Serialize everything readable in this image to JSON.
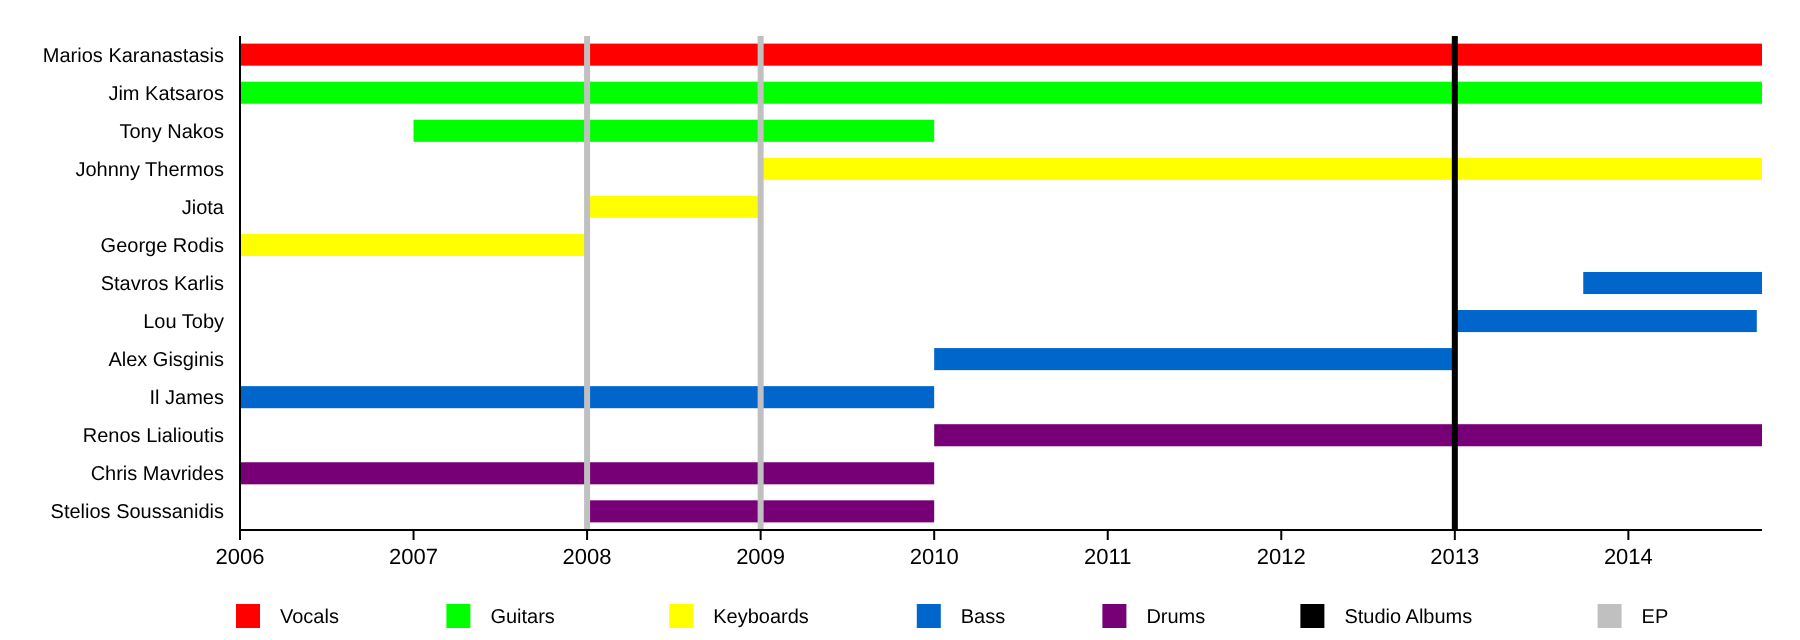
{
  "chart_data": {
    "type": "bar",
    "orientation": "horizontal",
    "categories": [
      "Marios Karanastasis",
      "Jim Katsaros",
      "Tony Nakos",
      "Johnny Thermos",
      "Jiota",
      "George Rodis",
      "Stavros Karlis",
      "Lou Toby",
      "Alex Gisginis",
      "Il James",
      "Renos Lialioutis",
      "Chris Mavrides",
      "Stelios Soussanidis"
    ],
    "series": [
      {
        "name": "Vocals",
        "color": "#ff0000",
        "base": [
          2006,
          null,
          null,
          null,
          null,
          null,
          null,
          null,
          null,
          null,
          null,
          null,
          null
        ],
        "values": [
          8.77,
          null,
          null,
          null,
          null,
          null,
          null,
          null,
          null,
          null,
          null,
          null,
          null
        ]
      },
      {
        "name": "Guitars",
        "color": "#00ff00",
        "base": [
          null,
          2006,
          2007,
          null,
          null,
          null,
          null,
          null,
          null,
          null,
          null,
          null,
          null
        ],
        "values": [
          null,
          8.77,
          3,
          null,
          null,
          null,
          null,
          null,
          null,
          null,
          null,
          null,
          null
        ]
      },
      {
        "name": "Keyboards",
        "color": "#ffff00",
        "base": [
          null,
          null,
          null,
          2009,
          2008,
          2006,
          null,
          null,
          null,
          null,
          null,
          null,
          null
        ],
        "values": [
          null,
          null,
          null,
          5.77,
          1,
          2,
          null,
          null,
          null,
          null,
          null,
          null,
          null
        ]
      },
      {
        "name": "Bass",
        "color": "#0066cc",
        "base": [
          null,
          null,
          null,
          null,
          null,
          null,
          2013.74,
          2013,
          2010,
          2006,
          null,
          null,
          null
        ],
        "values": [
          null,
          null,
          null,
          null,
          null,
          null,
          1.03,
          1.74,
          3,
          4,
          null,
          null,
          null
        ]
      },
      {
        "name": "Drums",
        "color": "#770077",
        "base": [
          null,
          null,
          null,
          null,
          null,
          null,
          null,
          null,
          null,
          null,
          2010,
          2006,
          2008
        ],
        "values": [
          null,
          null,
          null,
          null,
          null,
          null,
          null,
          null,
          null,
          null,
          4.77,
          4,
          2
        ]
      }
    ],
    "ref_lines": [
      {
        "axis": "x",
        "value": 2013,
        "label": "Studio Albums",
        "color": "#000000"
      },
      {
        "axis": "x",
        "value": 2008,
        "label": "EP",
        "color": "#c0c0c0"
      },
      {
        "axis": "x",
        "value": 2009,
        "color": "#c0c0c0"
      }
    ],
    "xlim": [
      2006,
      2014.77
    ],
    "xticks": [
      2006,
      2007,
      2008,
      2009,
      2010,
      2011,
      2012,
      2013,
      2014
    ],
    "grid": false,
    "legend": "bottom"
  }
}
